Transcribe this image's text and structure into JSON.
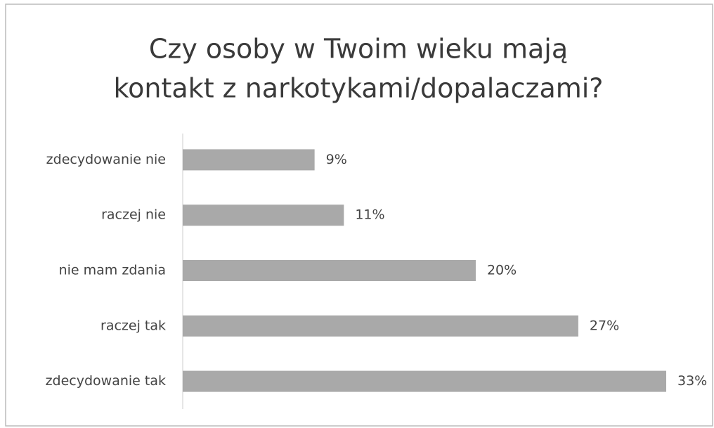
{
  "chart_data": {
    "type": "bar",
    "orientation": "horizontal",
    "title": [
      "Czy osoby w Twoim wieku mają",
      "kontakt z narkotykami/dopalaczami?"
    ],
    "categories": [
      "zdecydowanie nie",
      "raczej nie",
      "nie mam zdania",
      "raczej tak",
      "zdecydowanie tak"
    ],
    "values": [
      9,
      11,
      20,
      27,
      33
    ],
    "value_labels": [
      "9%",
      "11%",
      "20%",
      "27%",
      "33%"
    ],
    "color": "#a9a9a9"
  }
}
